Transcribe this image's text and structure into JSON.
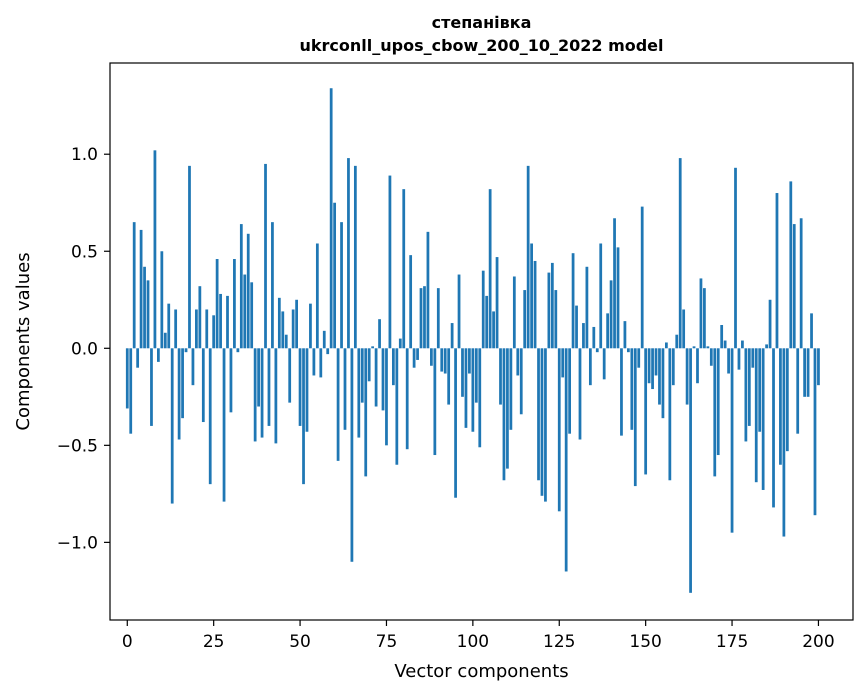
{
  "chart_data": {
    "type": "bar",
    "title": "степанівка",
    "subtitle": "ukrconll_upos_cbow_200_10_2022 model",
    "xlabel": "Vector components",
    "ylabel": "Components values",
    "xlim": [
      -5,
      210
    ],
    "ylim": [
      -1.4,
      1.47
    ],
    "xticks": [
      0,
      25,
      50,
      75,
      100,
      125,
      150,
      175,
      200
    ],
    "xtick_labels": [
      "0",
      "25",
      "50",
      "75",
      "100",
      "125",
      "150",
      "175",
      "200"
    ],
    "yticks": [
      -1.0,
      -0.5,
      0.0,
      0.5,
      1.0
    ],
    "ytick_labels": [
      "−1.0",
      "−0.5",
      "0.0",
      "0.5",
      "1.0"
    ],
    "bar_color": "#1f77b4",
    "values": [
      -0.31,
      -0.44,
      0.65,
      -0.1,
      0.61,
      0.42,
      0.35,
      -0.4,
      1.02,
      -0.07,
      0.5,
      0.08,
      0.23,
      -0.8,
      0.2,
      -0.47,
      -0.36,
      -0.02,
      0.94,
      -0.19,
      0.2,
      0.32,
      -0.38,
      0.2,
      -0.7,
      0.17,
      0.46,
      0.28,
      -0.79,
      0.27,
      -0.33,
      0.46,
      -0.02,
      0.64,
      0.38,
      0.59,
      0.34,
      -0.48,
      -0.3,
      -0.46,
      0.95,
      -0.4,
      0.65,
      -0.49,
      0.26,
      0.19,
      0.07,
      -0.28,
      0.2,
      0.25,
      -0.4,
      -0.7,
      -0.43,
      0.23,
      -0.14,
      0.54,
      -0.15,
      0.09,
      -0.03,
      1.34,
      0.75,
      -0.58,
      0.65,
      -0.42,
      0.98,
      -1.1,
      0.94,
      -0.46,
      -0.28,
      -0.66,
      -0.17,
      0.01,
      -0.3,
      0.15,
      -0.32,
      -0.5,
      0.89,
      -0.19,
      -0.6,
      0.05,
      0.82,
      -0.52,
      0.48,
      -0.1,
      -0.06,
      0.31,
      0.32,
      0.6,
      -0.09,
      -0.55,
      0.31,
      -0.12,
      -0.13,
      -0.29,
      0.13,
      -0.77,
      0.38,
      -0.25,
      -0.41,
      -0.13,
      -0.43,
      -0.28,
      -0.51,
      0.4,
      0.27,
      0.82,
      0.19,
      0.47,
      -0.29,
      -0.68,
      -0.62,
      -0.42,
      0.37,
      -0.14,
      -0.34,
      0.3,
      0.94,
      0.54,
      0.45,
      -0.68,
      -0.76,
      -0.79,
      0.39,
      0.44,
      0.3,
      -0.84,
      -0.15,
      -1.15,
      -0.44,
      0.49,
      0.22,
      -0.47,
      0.13,
      0.42,
      -0.19,
      0.11,
      -0.02,
      0.54,
      -0.16,
      0.18,
      0.35,
      0.67,
      0.52,
      -0.45,
      0.14,
      -0.02,
      -0.42,
      -0.71,
      -0.1,
      0.73,
      -0.65,
      -0.18,
      -0.21,
      -0.14,
      -0.29,
      -0.36,
      0.03,
      -0.68,
      -0.19,
      0.07,
      0.98,
      0.2,
      -0.29,
      -1.26,
      0.01,
      -0.18,
      0.36,
      0.31,
      0.01,
      -0.09,
      -0.66,
      -0.55,
      0.12,
      0.04,
      -0.13,
      -0.95,
      0.93,
      -0.11,
      0.04,
      -0.48,
      -0.4,
      -0.1,
      -0.69,
      -0.43,
      -0.73,
      0.02,
      0.25,
      -0.82,
      0.8,
      -0.6,
      -0.97,
      -0.53,
      0.86,
      0.64,
      -0.44,
      0.67,
      -0.25,
      -0.25,
      0.18,
      -0.86,
      -0.19
    ]
  }
}
